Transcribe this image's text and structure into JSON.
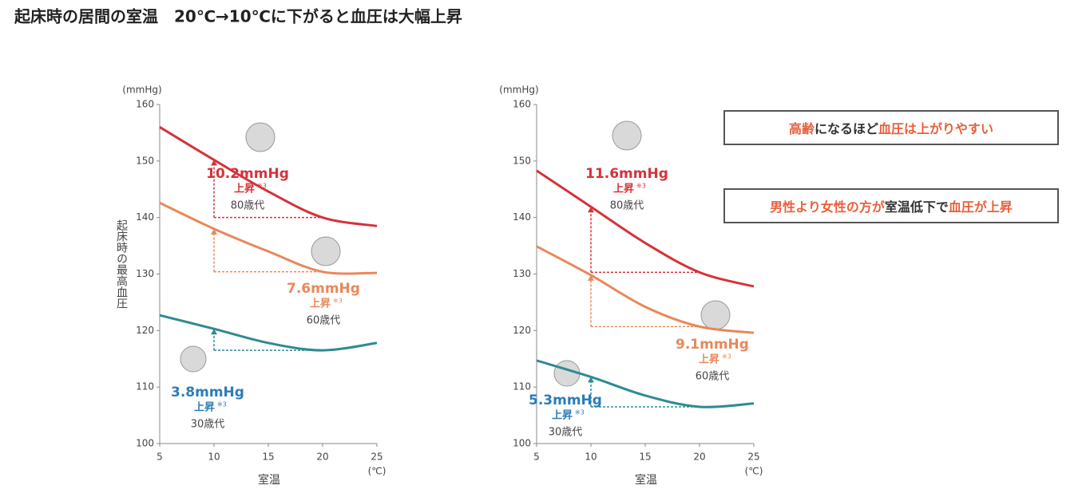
{
  "title": "起床時の居間の室温　20℃→10℃に下がると血圧は大幅上昇",
  "chart_data": [
    {
      "type": "line",
      "y_label": "起床時の最高血圧",
      "y_unit": "(mmHg)",
      "x_label": "室温",
      "x_unit": "(℃)",
      "x": [
        5,
        10,
        15,
        20,
        25
      ],
      "xlim": [
        5,
        25
      ],
      "xticks": [
        5,
        10,
        15,
        20,
        25
      ],
      "ylim": [
        100,
        160
      ],
      "yticks": [
        100,
        110,
        120,
        130,
        140,
        150,
        160
      ],
      "series": [
        {
          "name": "80歳代",
          "color": "#d6323a",
          "values": [
            156,
            150.2,
            144.6,
            140,
            138.5
          ]
        },
        {
          "name": "60歳代",
          "color": "#e8885a",
          "values": [
            142.6,
            138,
            134,
            130.4,
            130.2
          ]
        },
        {
          "name": "30歳代",
          "color": "#2f8a93",
          "values": [
            122.7,
            120.3,
            117.8,
            116.5,
            117.8
          ]
        }
      ],
      "annotations": [
        {
          "value": 10.2,
          "value_label": "10.2mmHg",
          "label": "上昇",
          "note": "※3",
          "color": "#d6323a"
        },
        {
          "value": 7.6,
          "value_label": "7.6mmHg",
          "label": "上昇",
          "note": "※3",
          "color": "#e8885a"
        },
        {
          "value": 3.8,
          "value_label": "3.8mmHg",
          "label": "上昇",
          "note": "※3",
          "color": "#2a7db8"
        }
      ]
    },
    {
      "type": "line",
      "y_unit": "(mmHg)",
      "x_label": "室温",
      "x_unit": "(℃)",
      "x": [
        5,
        10,
        15,
        20,
        25
      ],
      "xlim": [
        5,
        25
      ],
      "xticks": [
        5,
        10,
        15,
        20,
        25
      ],
      "ylim": [
        100,
        160
      ],
      "yticks": [
        100,
        110,
        120,
        130,
        140,
        150,
        160
      ],
      "series": [
        {
          "name": "80歳代",
          "color": "#d6323a",
          "values": [
            148.3,
            141.9,
            135.5,
            130.3,
            127.8
          ]
        },
        {
          "name": "60歳代",
          "color": "#e8885a",
          "values": [
            134.9,
            129.8,
            124.2,
            120.7,
            119.6
          ]
        },
        {
          "name": "30歳代",
          "color": "#2f8a93",
          "values": [
            114.7,
            111.8,
            108.5,
            106.5,
            107.1
          ]
        }
      ],
      "annotations": [
        {
          "value": 11.6,
          "value_label": "11.6mmHg",
          "label": "上昇",
          "note": "※3",
          "color": "#d6323a"
        },
        {
          "value": 9.1,
          "value_label": "9.1mmHg",
          "label": "上昇",
          "note": "※3",
          "color": "#e8885a"
        },
        {
          "value": 5.3,
          "value_label": "5.3mmHg",
          "label": "上昇",
          "note": "※3",
          "color": "#2a7db8"
        }
      ]
    }
  ],
  "callouts": [
    [
      {
        "text": "高齢",
        "color": "#e8603c"
      },
      {
        "text": "になるほど",
        "color": "#333333"
      },
      {
        "text": "血圧は上がりやすい",
        "color": "#e8603c"
      }
    ],
    [
      {
        "text": "男性より女性の方が",
        "color": "#e8603c"
      },
      {
        "text": "室温低下で",
        "color": "#333333"
      },
      {
        "text": "血圧が上昇",
        "color": "#e8603c"
      }
    ]
  ]
}
